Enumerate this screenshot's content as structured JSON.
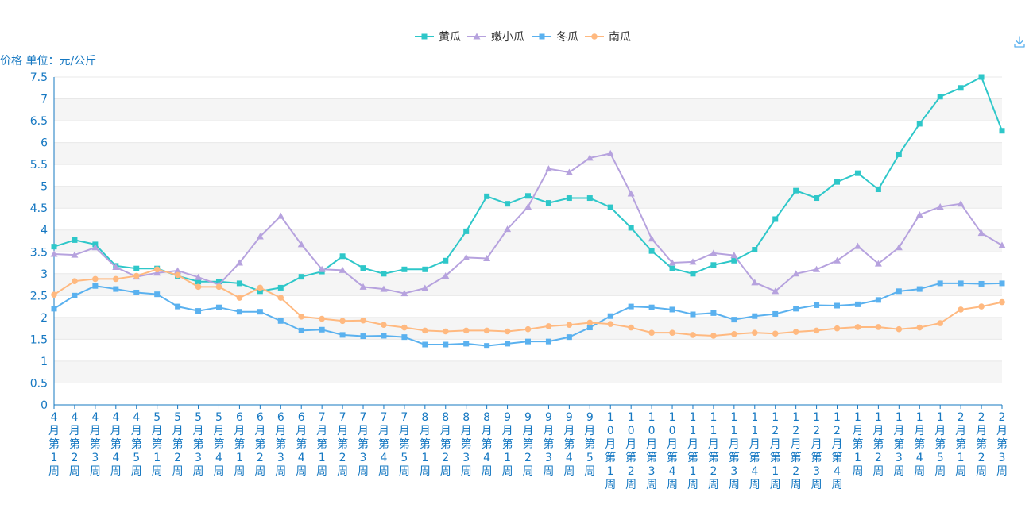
{
  "toolbar": {
    "download_icon": "download-icon"
  },
  "colors": {
    "axis": "#1678c2",
    "grid_band": "#f5f5f5",
    "grid_line": "#e8e8e8"
  },
  "chart_data": {
    "type": "line",
    "ylabel": "价格 单位：元/公斤",
    "ylim": [
      0,
      7.5
    ],
    "yticks": [
      "0",
      "0.5",
      "1",
      "1.5",
      "2",
      "2.5",
      "3",
      "3.5",
      "4",
      "4.5",
      "5",
      "5.5",
      "6",
      "6.5",
      "7",
      "7.5"
    ],
    "legend_position": "top-center",
    "grid": true,
    "categories": [
      "4月第1周",
      "4月第2周",
      "4月第3周",
      "4月第4周",
      "4月第5周",
      "5月第1周",
      "5月第2周",
      "5月第3周",
      "5月第4周",
      "6月第1周",
      "6月第2周",
      "6月第3周",
      "6月第4周",
      "7月第1周",
      "7月第2周",
      "7月第3周",
      "7月第4周",
      "7月第5周",
      "8月第1周",
      "8月第2周",
      "8月第3周",
      "8月第4周",
      "9月第1周",
      "9月第2周",
      "9月第3周",
      "9月第4周",
      "9月第5周",
      "10月第1周",
      "10月第2周",
      "10月第3周",
      "10月第4周",
      "11月第1周",
      "11月第2周",
      "11月第3周",
      "11月第4周",
      "12月第1周",
      "12月第2周",
      "12月第3周",
      "12月第4周",
      "1月第1周",
      "1月第2周",
      "1月第3周",
      "1月第4周",
      "1月第5周",
      "2月第1周",
      "2月第2周",
      "2月第3周"
    ],
    "series": [
      {
        "name": "黄瓜",
        "color": "#2ec7c9",
        "marker": "square",
        "values": [
          3.62,
          3.77,
          3.67,
          3.18,
          3.12,
          3.12,
          2.95,
          2.82,
          2.82,
          2.78,
          2.6,
          2.68,
          2.93,
          3.05,
          3.4,
          3.13,
          3.0,
          3.1,
          3.1,
          3.3,
          3.97,
          4.77,
          4.6,
          4.78,
          4.62,
          4.73,
          4.73,
          4.52,
          4.05,
          3.52,
          3.12,
          3.0,
          3.2,
          3.3,
          3.55,
          4.25,
          4.9,
          4.73,
          5.1,
          5.3,
          4.93,
          5.73,
          6.43,
          7.05,
          7.25,
          7.5,
          6.27
        ]
      },
      {
        "name": "嫩小瓜",
        "color": "#b6a2de",
        "marker": "triangle",
        "values": [
          3.45,
          3.43,
          3.6,
          3.15,
          2.93,
          3.02,
          3.07,
          2.92,
          2.75,
          3.25,
          3.85,
          4.32,
          3.67,
          3.1,
          3.08,
          2.7,
          2.65,
          2.55,
          2.67,
          2.95,
          3.37,
          3.35,
          4.02,
          4.53,
          5.4,
          5.32,
          5.65,
          5.75,
          4.83,
          3.8,
          3.25,
          3.27,
          3.47,
          3.42,
          2.8,
          2.6,
          3.0,
          3.1,
          3.3,
          3.63,
          3.23,
          3.6,
          4.35,
          4.53,
          4.6,
          3.93,
          3.65
        ]
      },
      {
        "name": "冬瓜",
        "color": "#5ab1ef",
        "marker": "square",
        "values": [
          2.2,
          2.5,
          2.72,
          2.65,
          2.57,
          2.53,
          2.25,
          2.15,
          2.23,
          2.13,
          2.13,
          1.92,
          1.7,
          1.72,
          1.6,
          1.57,
          1.58,
          1.55,
          1.38,
          1.38,
          1.4,
          1.35,
          1.4,
          1.45,
          1.45,
          1.55,
          1.77,
          2.03,
          2.25,
          2.23,
          2.18,
          2.07,
          2.1,
          1.95,
          2.03,
          2.08,
          2.2,
          2.28,
          2.27,
          2.3,
          2.4,
          2.6,
          2.65,
          2.78,
          2.78,
          2.77,
          2.78
        ]
      },
      {
        "name": "南瓜",
        "color": "#ffb980",
        "marker": "circle",
        "values": [
          2.52,
          2.83,
          2.88,
          2.88,
          2.95,
          3.1,
          2.97,
          2.7,
          2.7,
          2.45,
          2.68,
          2.45,
          2.02,
          1.97,
          1.92,
          1.93,
          1.83,
          1.77,
          1.7,
          1.68,
          1.7,
          1.7,
          1.68,
          1.73,
          1.8,
          1.83,
          1.88,
          1.85,
          1.77,
          1.65,
          1.65,
          1.6,
          1.58,
          1.62,
          1.65,
          1.63,
          1.67,
          1.7,
          1.75,
          1.78,
          1.78,
          1.73,
          1.77,
          1.87,
          2.18,
          2.25,
          2.35
        ]
      }
    ]
  }
}
